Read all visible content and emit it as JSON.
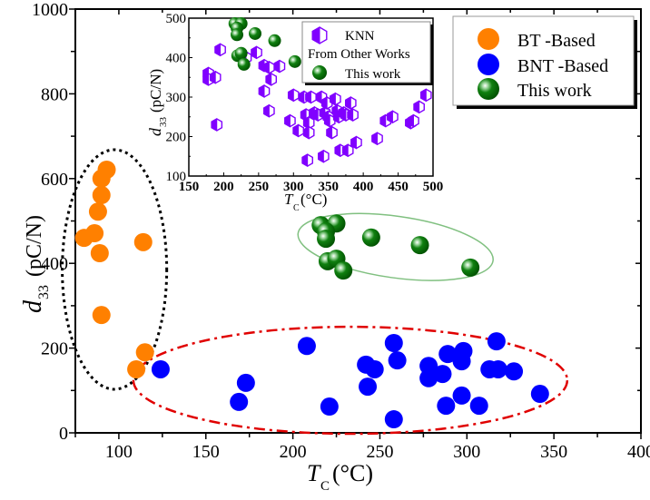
{
  "chart_data": [
    {
      "type": "scatter",
      "role": "main",
      "title": "",
      "xlabel": "T_C (°C)",
      "xlabel_main": "T",
      "xlabel_sub": "C",
      "xlabel_unit": "(°C)",
      "ylabel": "d33 (pC/N)",
      "ylabel_main": "d",
      "ylabel_sub": "33",
      "ylabel_unit": "(pC/N)",
      "xlim": [
        75,
        400
      ],
      "ylim": [
        0,
        1000
      ],
      "xticks": [
        100,
        150,
        200,
        250,
        300,
        350,
        400
      ],
      "yticks": [
        0,
        200,
        400,
        600,
        800,
        1000
      ],
      "grid": false,
      "legend_position": "top-right",
      "series": [
        {
          "name": "BT -Based",
          "color": "#ff8000",
          "points": [
            [
              93,
              621
            ],
            [
              90,
              600
            ],
            [
              90,
              561
            ],
            [
              88,
              522
            ],
            [
              86,
              471
            ],
            [
              80,
              460
            ],
            [
              89,
              424
            ],
            [
              114,
              450
            ],
            [
              90,
              278
            ],
            [
              115,
              190
            ],
            [
              110,
              150
            ]
          ]
        },
        {
          "name": "BNT -Based",
          "color": "#0000ff",
          "points": [
            [
              124,
              150
            ],
            [
              208,
              205
            ],
            [
              173,
              118
            ],
            [
              169,
              73
            ],
            [
              221,
              62
            ],
            [
              242,
              161
            ],
            [
              247,
              150
            ],
            [
              243,
              109
            ],
            [
              258,
              212
            ],
            [
              260,
              171
            ],
            [
              258,
              32
            ],
            [
              278,
              158
            ],
            [
              278,
              129
            ],
            [
              286,
              139
            ],
            [
              289,
              186
            ],
            [
              298,
              193
            ],
            [
              297,
              169
            ],
            [
              288,
              64
            ],
            [
              297,
              88
            ],
            [
              307,
              64
            ],
            [
              317,
              216
            ],
            [
              313,
              150
            ],
            [
              318,
              150
            ],
            [
              327,
              145
            ],
            [
              342,
              92
            ]
          ]
        },
        {
          "name": "This work",
          "color": "#108010",
          "points": [
            [
              216,
              490
            ],
            [
              225,
              494
            ],
            [
              219,
              475
            ],
            [
              219,
              458
            ],
            [
              245,
              461
            ],
            [
              273,
              443
            ],
            [
              220,
              405
            ],
            [
              225,
              411
            ],
            [
              229,
              383
            ],
            [
              302,
              390
            ]
          ]
        }
      ],
      "annotations": [
        {
          "type": "ellipse",
          "style": "dotted",
          "color": "#000000",
          "encloses": "BT -Based"
        },
        {
          "type": "ellipse",
          "style": "dash-dot",
          "color": "#e00000",
          "encloses": "BNT -Based"
        },
        {
          "type": "ellipse",
          "style": "solid",
          "color": "#80c080",
          "encloses": "This work"
        }
      ]
    },
    {
      "type": "scatter",
      "role": "inset",
      "xlabel": "T_C (°C)",
      "xlabel_main": "T",
      "xlabel_sub": "C",
      "xlabel_unit": "(°C)",
      "ylabel": "d33 (pC/N)",
      "ylabel_main": "d",
      "ylabel_sub": "33",
      "ylabel_unit": "(pC/N)",
      "xlim": [
        150,
        500
      ],
      "ylim": [
        100,
        500
      ],
      "xticks": [
        150,
        200,
        250,
        300,
        350,
        400,
        450,
        500
      ],
      "yticks": [
        100,
        200,
        300,
        400,
        500
      ],
      "grid": false,
      "legend_position": "top-right",
      "legend_title": "From Other Works",
      "series": [
        {
          "name": "KNN",
          "color": "#8000ff",
          "points": [
            [
              195,
              420
            ],
            [
              178,
              360
            ],
            [
              178,
              345
            ],
            [
              188,
              350
            ],
            [
              190,
              230
            ],
            [
              225,
              410
            ],
            [
              232,
              400
            ],
            [
              247,
              413
            ],
            [
              258,
              380
            ],
            [
              265,
              375
            ],
            [
              268,
              345
            ],
            [
              258,
              315
            ],
            [
              265,
              265
            ],
            [
              280,
              378
            ],
            [
              300,
              305
            ],
            [
              295,
              240
            ],
            [
              307,
              215
            ],
            [
              315,
              300
            ],
            [
              325,
              300
            ],
            [
              318,
              255
            ],
            [
              322,
              235
            ],
            [
              322,
              210
            ],
            [
              320,
              140
            ],
            [
              330,
              260
            ],
            [
              335,
              255
            ],
            [
              340,
              300
            ],
            [
              343,
              150
            ],
            [
              345,
              260
            ],
            [
              348,
              285
            ],
            [
              350,
              250
            ],
            [
              352,
              240
            ],
            [
              355,
              210
            ],
            [
              360,
              295
            ],
            [
              363,
              265
            ],
            [
              365,
              250
            ],
            [
              367,
              165
            ],
            [
              372,
              260
            ],
            [
              375,
              255
            ],
            [
              378,
              165
            ],
            [
              382,
              285
            ],
            [
              385,
              255
            ],
            [
              390,
              185
            ],
            [
              420,
              195
            ],
            [
              432,
              240
            ],
            [
              442,
              250
            ],
            [
              468,
              235
            ],
            [
              472,
              240
            ],
            [
              480,
              275
            ],
            [
              490,
              305
            ]
          ]
        },
        {
          "name": "This work",
          "color": "#108010",
          "points": [
            [
              216,
              490
            ],
            [
              225,
              494
            ],
            [
              219,
              475
            ],
            [
              219,
              458
            ],
            [
              245,
              461
            ],
            [
              273,
              443
            ],
            [
              220,
              405
            ],
            [
              225,
              411
            ],
            [
              229,
              383
            ],
            [
              302,
              390
            ]
          ]
        }
      ]
    }
  ]
}
